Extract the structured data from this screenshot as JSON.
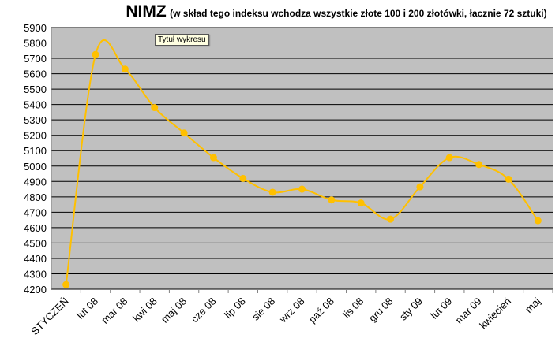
{
  "chart_data": {
    "type": "line",
    "title": "NIMZ",
    "subtitle": "(w skład tego indeksu wchodza wszystkie  złote 100 i 200 złotówki, łacznie 72 sztuki)",
    "tooltip": "Tytuł wykresu",
    "categories": [
      "STYCZEŃ",
      "lut 08",
      "mar 08",
      "kwi 08",
      "maj 08",
      "cze 08",
      "lip 08",
      "sie 08",
      "wrz 08",
      "paź 08",
      "lis 08",
      "gru 08",
      "sty 09",
      "lut 09",
      "mar 09",
      "kwiecień",
      "maj"
    ],
    "values": [
      4230,
      5725,
      5630,
      5380,
      5215,
      5055,
      4920,
      4830,
      4850,
      4780,
      4760,
      4655,
      4865,
      5055,
      5010,
      4915,
      4645
    ],
    "color": "#ffc000",
    "ylim": [
      4200,
      5900
    ],
    "yticks": [
      4200,
      4300,
      4400,
      4500,
      4600,
      4700,
      4800,
      4900,
      5000,
      5100,
      5200,
      5300,
      5400,
      5500,
      5600,
      5700,
      5800,
      5900
    ],
    "grid": true,
    "smooth": true
  }
}
